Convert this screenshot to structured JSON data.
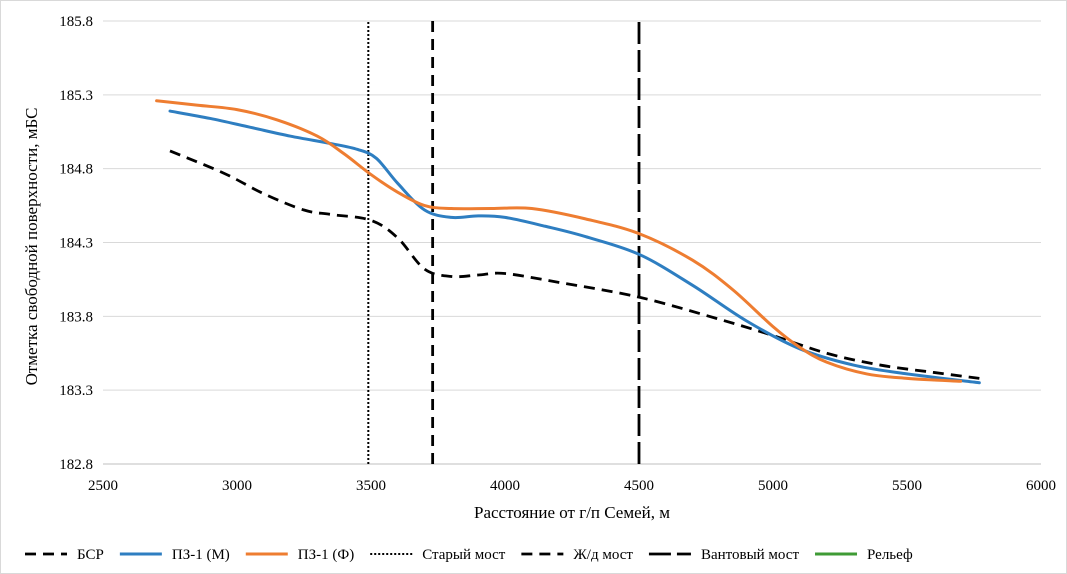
{
  "chart_data": {
    "type": "line",
    "title": "",
    "xlabel": "Расстояние от г/п Семей, м",
    "ylabel": "Отметка свободной поверхности, мБС",
    "xlim": [
      2500,
      6000
    ],
    "ylim": [
      182.8,
      185.8
    ],
    "x_ticks": [
      2500,
      3000,
      3500,
      4000,
      4500,
      5000,
      5500,
      6000
    ],
    "y_ticks": [
      182.8,
      183.3,
      183.8,
      184.3,
      184.8,
      185.3,
      185.8
    ],
    "x_tick_labels": [
      "2500",
      "3000",
      "3500",
      "4000",
      "4500",
      "5000",
      "5500",
      "6000"
    ],
    "y_tick_labels": [
      "182.8",
      "183.3",
      "183.8",
      "184.3",
      "184.8",
      "185.3",
      "185.8"
    ],
    "grid": "horizontal",
    "legend_position": "bottom",
    "series": [
      {
        "name": "БСР",
        "color": "#000000",
        "style": "dashed",
        "x": [
          2750,
          2950,
          3100,
          3250,
          3350,
          3500,
          3600,
          3700,
          3800,
          3900,
          4000,
          4200,
          4500,
          4800,
          5000,
          5200,
          5400,
          5600,
          5770
        ],
        "y": [
          184.92,
          184.77,
          184.63,
          184.52,
          184.49,
          184.45,
          184.33,
          184.12,
          184.07,
          184.08,
          184.09,
          184.03,
          183.93,
          183.78,
          183.67,
          183.55,
          183.47,
          183.42,
          183.38
        ]
      },
      {
        "name": "ПЗ-1 (М)",
        "color": "#2e7ec1",
        "style": "solid",
        "x": [
          2750,
          2900,
          3050,
          3200,
          3350,
          3450,
          3520,
          3600,
          3700,
          3800,
          3900,
          4000,
          4150,
          4300,
          4500,
          4700,
          4900,
          5100,
          5300,
          5500,
          5770
        ],
        "y": [
          185.19,
          185.14,
          185.08,
          185.02,
          184.97,
          184.93,
          184.87,
          184.7,
          184.52,
          184.47,
          184.48,
          184.47,
          184.41,
          184.34,
          184.22,
          184.01,
          183.77,
          183.58,
          183.47,
          183.41,
          183.35
        ]
      },
      {
        "name": "ПЗ-1 (Ф)",
        "color": "#ee7d31",
        "style": "solid",
        "x": [
          2700,
          2850,
          3000,
          3150,
          3300,
          3400,
          3500,
          3600,
          3700,
          3800,
          3950,
          4100,
          4300,
          4500,
          4700,
          4850,
          5000,
          5100,
          5200,
          5350,
          5500,
          5700
        ],
        "y": [
          185.26,
          185.23,
          185.2,
          185.13,
          185.02,
          184.9,
          184.76,
          184.64,
          184.55,
          184.53,
          184.53,
          184.53,
          184.46,
          184.36,
          184.18,
          183.98,
          183.73,
          183.59,
          183.49,
          183.41,
          183.38,
          183.36
        ]
      },
      {
        "name": "Старый мост",
        "color": "#000000",
        "style": "dotted",
        "x": [
          3490,
          3490
        ],
        "y": [
          182.8,
          185.8
        ]
      },
      {
        "name": "Ж/д мост",
        "color": "#000000",
        "style": "dashed",
        "x": [
          3730,
          3730
        ],
        "y": [
          182.8,
          185.8
        ]
      },
      {
        "name": "Вантовый мост",
        "color": "#000000",
        "style": "longdash",
        "x": [
          4500,
          4500
        ],
        "y": [
          182.8,
          185.8
        ]
      },
      {
        "name": "Рельеф",
        "color": "#3f9b35",
        "style": "solid",
        "x": [],
        "y": []
      }
    ]
  }
}
